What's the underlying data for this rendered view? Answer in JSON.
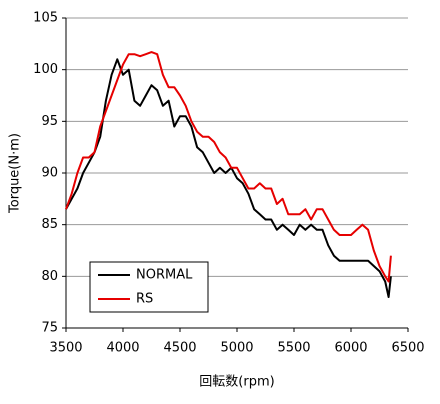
{
  "chart_data": {
    "type": "line",
    "xlabel": "回転数(rpm)",
    "ylabel": "Torque(N·m)",
    "xlim": [
      3500,
      6500
    ],
    "xticks": [
      3500,
      4000,
      4500,
      5000,
      5500,
      6000,
      6500
    ],
    "ylim": [
      75,
      105
    ],
    "yticks": [
      75,
      80,
      85,
      90,
      95,
      100,
      105
    ],
    "grid": true,
    "legend": "lower left",
    "x": [
      3500,
      3550,
      3600,
      3650,
      3700,
      3750,
      3800,
      3850,
      3900,
      3950,
      4000,
      4050,
      4100,
      4150,
      4200,
      4250,
      4300,
      4350,
      4400,
      4450,
      4500,
      4550,
      4600,
      4650,
      4700,
      4750,
      4800,
      4850,
      4900,
      4950,
      5000,
      5050,
      5100,
      5150,
      5200,
      5250,
      5300,
      5350,
      5400,
      5450,
      5500,
      5550,
      5600,
      5650,
      5700,
      5750,
      5800,
      5850,
      5900,
      5950,
      6000,
      6050,
      6100,
      6150,
      6200,
      6250,
      6300,
      6330,
      6350
    ],
    "series": [
      {
        "name": "NORMAL",
        "color": "#000000",
        "values": [
          86.5,
          87.5,
          88.5,
          90,
          91,
          92,
          93.5,
          97,
          99.5,
          101,
          99.5,
          100,
          97,
          96.5,
          97.5,
          98.5,
          98,
          96.5,
          97,
          94.5,
          95.5,
          95.5,
          94.5,
          92.5,
          92,
          91,
          90,
          90.5,
          90,
          90.5,
          89.5,
          89,
          88,
          86.5,
          86,
          85.5,
          85.5,
          84.5,
          85,
          84.5,
          84,
          85,
          84.5,
          85,
          84.5,
          84.5,
          83,
          82,
          81.5,
          81.5,
          81.5,
          81.5,
          81.5,
          81.5,
          81,
          80.5,
          79.5,
          78,
          80
        ]
      },
      {
        "name": "RS",
        "color": "#e60000",
        "values": [
          86.5,
          88,
          90,
          91.5,
          91.5,
          92,
          94.5,
          96,
          97.5,
          99,
          100.5,
          101.5,
          101.5,
          101.3,
          101.5,
          101.7,
          101.5,
          99.5,
          98.3,
          98.3,
          97.5,
          96.5,
          95,
          94,
          93.5,
          93.5,
          93,
          92,
          91.5,
          90.5,
          90.5,
          89.5,
          88.5,
          88.5,
          89,
          88.5,
          88.5,
          87,
          87.5,
          86,
          86,
          86,
          86.5,
          85.5,
          86.5,
          86.5,
          85.5,
          84.5,
          84,
          84,
          84,
          84.5,
          85,
          84.5,
          82.5,
          81,
          80,
          79.5,
          82
        ]
      }
    ]
  }
}
